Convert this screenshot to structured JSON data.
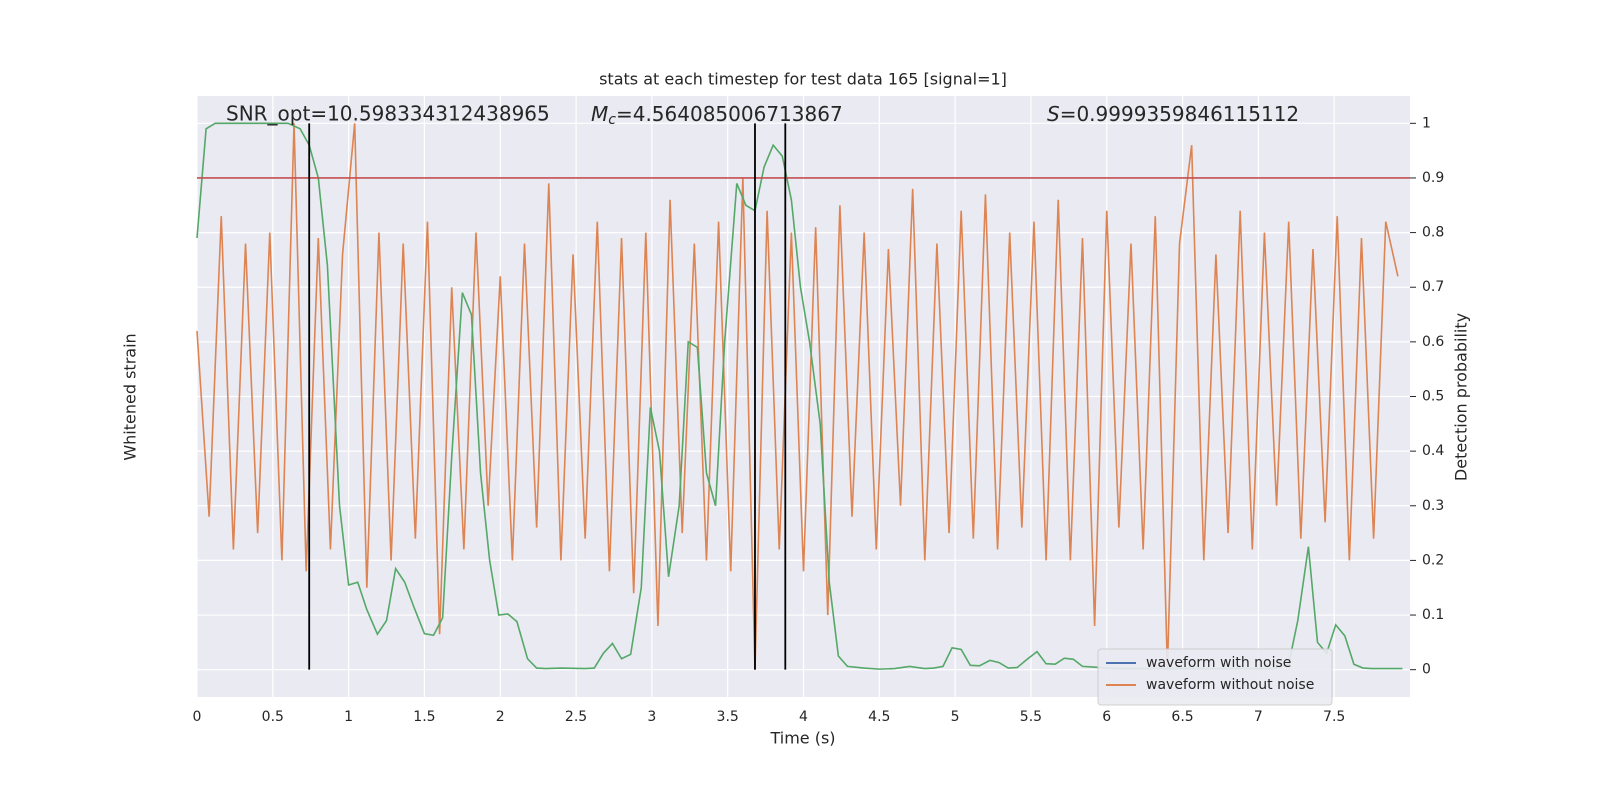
{
  "chart_data": {
    "type": "line",
    "title": "stats at each timestep for test data 165 [signal=1]",
    "xlabel": "Time (s)",
    "ylabel_left": "Whitened strain",
    "ylabel": "Detection probability",
    "annotations": [
      {
        "text": "SNR_opt=10.598334312438965"
      },
      {
        "symbol": "M",
        "subscript": "c",
        "text": "=4.564085006713867"
      },
      {
        "symbol": "S",
        "text": "=0.9999359846115112"
      }
    ],
    "xlim": [
      0,
      8
    ],
    "xticks": [
      0.0,
      0.5,
      1.0,
      1.5,
      2.0,
      2.5,
      3.0,
      3.5,
      4.0,
      4.5,
      5.0,
      5.5,
      6.0,
      6.5,
      7.0,
      7.5
    ],
    "ylim": [
      -0.05,
      1.05
    ],
    "yticks": [
      0.0,
      0.1,
      0.2,
      0.3,
      0.4,
      0.5,
      0.6,
      0.7,
      0.8,
      0.9,
      1.0
    ],
    "grid": true,
    "legend": "lower right",
    "threshold": {
      "value": 0.9,
      "color": "#c44e52"
    },
    "vlines": {
      "color": "#000000",
      "x": [
        0.74,
        3.68,
        3.88
      ]
    },
    "series": [
      {
        "name": "waveform with noise",
        "color": "#4c72b0"
      },
      {
        "name": "waveform without noise",
        "color": "#dd8452",
        "x": [
          0,
          0.08,
          0.16,
          0.24,
          0.32,
          0.4,
          0.48,
          0.56,
          0.64,
          0.72,
          0.8,
          0.88,
          0.96,
          1.04,
          1.12,
          1.2,
          1.28,
          1.36,
          1.44,
          1.52,
          1.6,
          1.68,
          1.76,
          1.84,
          1.92,
          2,
          2.08,
          2.16,
          2.24,
          2.32,
          2.4,
          2.48,
          2.56,
          2.64,
          2.72,
          2.8,
          2.88,
          2.96,
          3.04,
          3.12,
          3.2,
          3.28,
          3.36,
          3.44,
          3.52,
          3.6,
          3.68,
          3.76,
          3.84,
          3.92,
          4,
          4.08,
          4.16,
          4.24,
          4.32,
          4.4,
          4.48,
          4.56,
          4.64,
          4.72,
          4.8,
          4.88,
          4.96,
          5.04,
          5.12,
          5.2,
          5.28,
          5.36,
          5.44,
          5.52,
          5.6,
          5.68,
          5.76,
          5.84,
          5.92,
          6,
          6.08,
          6.16,
          6.24,
          6.32,
          6.4,
          6.48,
          6.56,
          6.64,
          6.72,
          6.8,
          6.88,
          6.96,
          7.04,
          7.12,
          7.2,
          7.28,
          7.36,
          7.44,
          7.52,
          7.6,
          7.68,
          7.76,
          7.84,
          7.92
        ],
        "values": [
          0.62,
          0.28,
          0.83,
          0.22,
          0.78,
          0.25,
          0.8,
          0.2,
          1.0,
          0.18,
          0.79,
          0.22,
          0.76,
          1.0,
          0.15,
          0.8,
          0.2,
          0.78,
          0.24,
          0.82,
          0.065,
          0.7,
          0.22,
          0.8,
          0.3,
          0.72,
          0.2,
          0.78,
          0.26,
          0.89,
          0.2,
          0.76,
          0.24,
          0.82,
          0.18,
          0.79,
          0.14,
          0.8,
          0.08,
          0.86,
          0.25,
          0.78,
          0.2,
          0.82,
          0.18,
          0.9,
          0.0,
          0.84,
          0.22,
          0.8,
          0.18,
          0.81,
          0.1,
          0.85,
          0.28,
          0.8,
          0.22,
          0.77,
          0.3,
          0.88,
          0.2,
          0.78,
          0.25,
          0.84,
          0.24,
          0.87,
          0.22,
          0.8,
          0.26,
          0.82,
          0.2,
          0.86,
          0.2,
          0.79,
          0.08,
          0.84,
          0.26,
          0.78,
          0.22,
          0.83,
          0.0,
          0.78,
          0.96,
          0.2,
          0.76,
          0.25,
          0.84,
          0.22,
          0.8,
          0.3,
          0.82,
          0.24,
          0.77,
          0.27,
          0.83,
          0.2,
          0.79,
          0.24,
          0.82,
          0.72
        ]
      },
      {
        "color": "#55a868",
        "x": [
          0,
          0.06,
          0.12,
          0.6,
          0.68,
          0.74,
          0.8,
          0.86,
          0.94,
          1.0,
          1.06,
          1.12,
          1.19,
          1.25,
          1.31,
          1.37,
          1.43,
          1.5,
          1.56,
          1.62,
          1.68,
          1.75,
          1.81,
          1.87,
          1.93,
          1.99,
          2.05,
          2.11,
          2.18,
          2.24,
          2.3,
          2.4,
          2.56,
          2.62,
          2.68,
          2.74,
          2.8,
          2.86,
          2.93,
          2.99,
          3.05,
          3.11,
          3.18,
          3.24,
          3.3,
          3.36,
          3.42,
          3.48,
          3.56,
          3.62,
          3.68,
          3.74,
          3.8,
          3.86,
          3.92,
          3.98,
          4.04,
          4.11,
          4.17,
          4.23,
          4.29,
          4.4,
          4.5,
          4.6,
          4.7,
          4.8,
          4.86,
          4.92,
          4.98,
          5.04,
          5.1,
          5.16,
          5.23,
          5.29,
          5.35,
          5.41,
          5.47,
          5.54,
          5.6,
          5.66,
          5.72,
          5.78,
          5.84,
          5.9,
          6.0,
          6.1,
          6.3,
          6.5,
          6.7,
          6.9,
          7.1,
          7.2,
          7.26,
          7.33,
          7.39,
          7.45,
          7.51,
          7.57,
          7.63,
          7.69,
          7.75,
          7.95
        ],
        "values": [
          0.79,
          0.99,
          1.0,
          1.0,
          0.99,
          0.96,
          0.9,
          0.74,
          0.3,
          0.155,
          0.16,
          0.11,
          0.065,
          0.09,
          0.185,
          0.16,
          0.115,
          0.066,
          0.063,
          0.095,
          0.39,
          0.69,
          0.65,
          0.36,
          0.2,
          0.1,
          0.102,
          0.088,
          0.02,
          0.003,
          0.002,
          0.003,
          0.002,
          0.003,
          0.03,
          0.048,
          0.02,
          0.028,
          0.15,
          0.48,
          0.4,
          0.17,
          0.3,
          0.6,
          0.59,
          0.36,
          0.3,
          0.6,
          0.89,
          0.85,
          0.84,
          0.92,
          0.96,
          0.94,
          0.86,
          0.7,
          0.6,
          0.45,
          0.16,
          0.025,
          0.006,
          0.003,
          0.001,
          0.002,
          0.006,
          0.002,
          0.003,
          0.006,
          0.04,
          0.037,
          0.008,
          0.007,
          0.017,
          0.013,
          0.003,
          0.004,
          0.018,
          0.033,
          0.011,
          0.01,
          0.021,
          0.019,
          0.006,
          0.005,
          0.003,
          0.002,
          0.002,
          0.002,
          0.002,
          0.002,
          0.002,
          0.01,
          0.09,
          0.225,
          0.05,
          0.03,
          0.082,
          0.062,
          0.01,
          0.003,
          0.002,
          0.002
        ]
      }
    ]
  }
}
